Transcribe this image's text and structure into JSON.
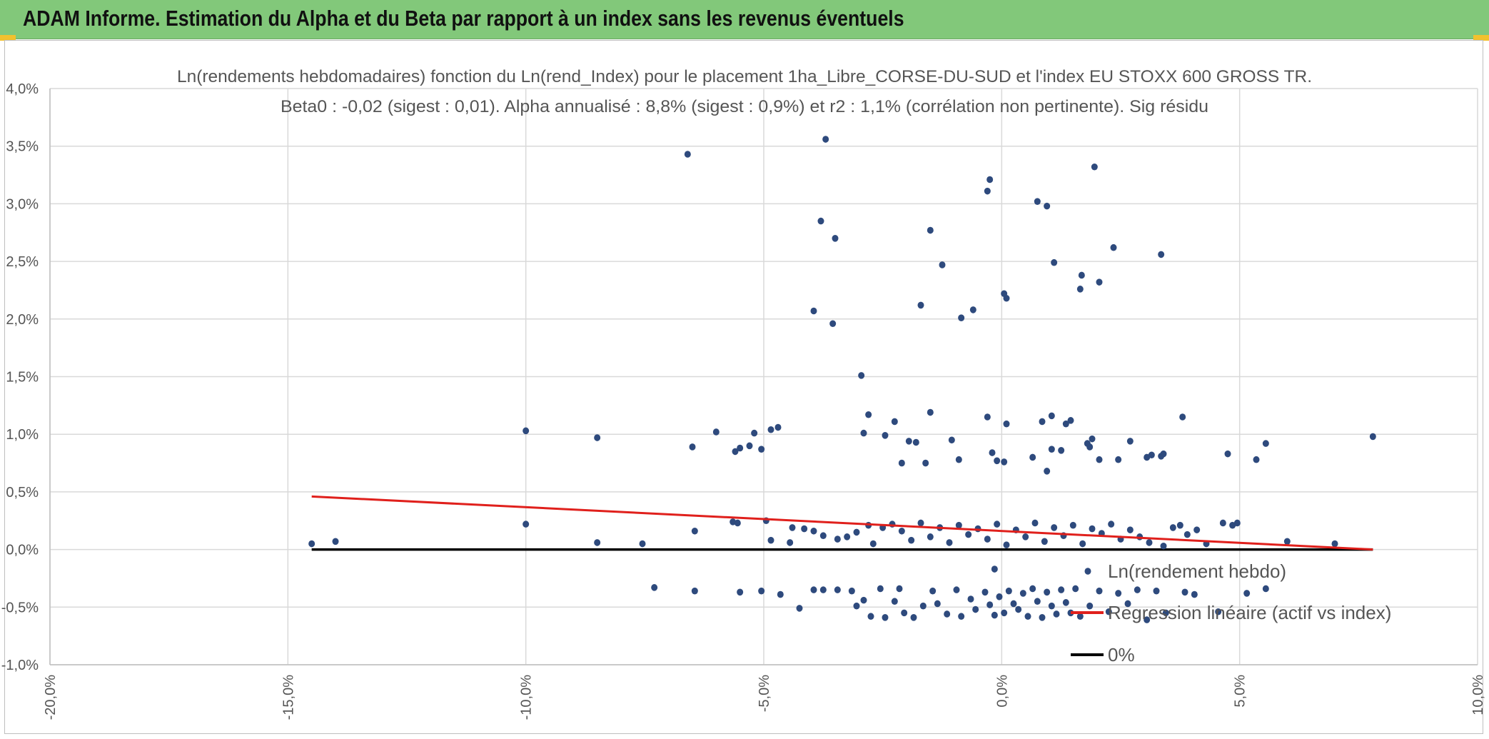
{
  "banner": {
    "title": "ADAM Informe. Estimation du Alpha et du Beta par rapport à un index sans les revenus éventuels"
  },
  "colors": {
    "banner_bg": "#82c87a",
    "points": "#2e4a7d",
    "regression": "#e0201c",
    "zero_line": "#000000",
    "grid": "#d9d9d9",
    "accent": "#f2c12e"
  },
  "chart_data": {
    "type": "scatter",
    "title_line1": "Ln(rendements hebdomadaires) fonction du Ln(rend_Index) pour le placement 1ha_Libre_CORSE-DU-SUD et l'index EU STOXX 600 GROSS TR.",
    "title_line2": "Beta0 : -0,02 (sigest : 0,01). Alpha annualisé : 8,8% (sigest : 0,9%) et r2 : 1,1% (corrélation non pertinente). Sig résidu",
    "xlim": [
      -0.2,
      0.1
    ],
    "ylim": [
      -0.01,
      0.04
    ],
    "x_ticks": [
      -0.2,
      -0.15,
      -0.1,
      -0.05,
      0.0,
      0.05,
      0.1
    ],
    "x_tick_labels": [
      "-20,0%",
      "-15,0%",
      "-10,0%",
      "-5,0%",
      "0,0%",
      "5,0%",
      "10,0%"
    ],
    "y_ticks": [
      -0.01,
      -0.005,
      0.0,
      0.005,
      0.01,
      0.015,
      0.02,
      0.025,
      0.03,
      0.035,
      0.04
    ],
    "y_tick_labels": [
      "-1,0%",
      "-0,5%",
      "0,0%",
      "0,5%",
      "1,0%",
      "1,5%",
      "2,0%",
      "2,5%",
      "3,0%",
      "3,5%",
      "4,0%"
    ],
    "grid": true,
    "legend_position": "bottom-right, inside plot",
    "series": [
      {
        "name": "Ln(rendement hebdo)",
        "kind": "points",
        "points": [
          [
            -0.066,
            0.0343
          ],
          [
            -0.037,
            0.0356
          ],
          [
            0.0195,
            0.0332
          ],
          [
            -0.0025,
            0.0321
          ],
          [
            -0.003,
            0.0311
          ],
          [
            0.0075,
            0.0302
          ],
          [
            0.0095,
            0.0298
          ],
          [
            -0.038,
            0.0285
          ],
          [
            -0.035,
            0.027
          ],
          [
            -0.015,
            0.0277
          ],
          [
            -0.0125,
            0.0247
          ],
          [
            0.011,
            0.0249
          ],
          [
            0.0235,
            0.0262
          ],
          [
            0.0335,
            0.0256
          ],
          [
            0.0165,
            0.0226
          ],
          [
            0.0168,
            0.0238
          ],
          [
            0.0205,
            0.0232
          ],
          [
            -0.0395,
            0.0207
          ],
          [
            -0.0355,
            0.0196
          ],
          [
            -0.017,
            0.0212
          ],
          [
            -0.006,
            0.0208
          ],
          [
            -0.0085,
            0.0201
          ],
          [
            0.0005,
            0.0222
          ],
          [
            0.001,
            0.0218
          ],
          [
            -0.0295,
            0.0151
          ],
          [
            -0.1,
            0.0103
          ],
          [
            -0.085,
            0.0097
          ],
          [
            -0.065,
            0.0089
          ],
          [
            -0.06,
            0.0102
          ],
          [
            -0.056,
            0.0085
          ],
          [
            -0.055,
            0.0088
          ],
          [
            -0.053,
            0.009
          ],
          [
            -0.052,
            0.0101
          ],
          [
            -0.0505,
            0.0087
          ],
          [
            -0.0485,
            0.0104
          ],
          [
            -0.047,
            0.0106
          ],
          [
            -0.028,
            0.0117
          ],
          [
            -0.029,
            0.0101
          ],
          [
            -0.0245,
            0.0099
          ],
          [
            -0.0225,
            0.0111
          ],
          [
            -0.0195,
            0.0094
          ],
          [
            -0.018,
            0.0093
          ],
          [
            -0.021,
            0.0075
          ],
          [
            -0.016,
            0.0075
          ],
          [
            -0.015,
            0.0119
          ],
          [
            -0.0105,
            0.0095
          ],
          [
            -0.009,
            0.0078
          ],
          [
            -0.003,
            0.0115
          ],
          [
            -0.002,
            0.0084
          ],
          [
            -0.001,
            0.0077
          ],
          [
            0.001,
            0.0109
          ],
          [
            0.0005,
            0.0076
          ],
          [
            0.0065,
            0.008
          ],
          [
            0.0085,
            0.0111
          ],
          [
            0.0095,
            0.0068
          ],
          [
            0.0105,
            0.0116
          ],
          [
            0.0105,
            0.0087
          ],
          [
            0.0135,
            0.0109
          ],
          [
            0.0145,
            0.0112
          ],
          [
            0.0125,
            0.0086
          ],
          [
            0.018,
            0.0092
          ],
          [
            0.0185,
            0.0089
          ],
          [
            0.019,
            0.0096
          ],
          [
            0.0205,
            0.0078
          ],
          [
            0.0245,
            0.0078
          ],
          [
            0.027,
            0.0094
          ],
          [
            0.0305,
            0.008
          ],
          [
            0.0315,
            0.0082
          ],
          [
            0.0335,
            0.0081
          ],
          [
            0.034,
            0.0083
          ],
          [
            0.038,
            0.0115
          ],
          [
            0.0475,
            0.0083
          ],
          [
            0.0535,
            0.0078
          ],
          [
            0.0555,
            0.0092
          ],
          [
            0.078,
            0.0098
          ],
          [
            -0.145,
            0.0005
          ],
          [
            -0.14,
            0.0007
          ],
          [
            -0.1,
            0.0022
          ],
          [
            -0.085,
            0.0006
          ],
          [
            -0.0755,
            0.0005
          ],
          [
            -0.0645,
            0.0016
          ],
          [
            -0.0565,
            0.0024
          ],
          [
            -0.0555,
            0.0023
          ],
          [
            -0.0495,
            0.0025
          ],
          [
            -0.0445,
            0.0006
          ],
          [
            -0.0485,
            0.0008
          ],
          [
            -0.044,
            0.0019
          ],
          [
            -0.0415,
            0.0018
          ],
          [
            -0.0395,
            0.0016
          ],
          [
            -0.0375,
            0.0012
          ],
          [
            -0.0345,
            0.0009
          ],
          [
            -0.0325,
            0.0011
          ],
          [
            -0.0305,
            0.0015
          ],
          [
            -0.028,
            0.0021
          ],
          [
            -0.027,
            0.0005
          ],
          [
            -0.025,
            0.0019
          ],
          [
            -0.023,
            0.0022
          ],
          [
            -0.021,
            0.0016
          ],
          [
            -0.019,
            0.0008
          ],
          [
            -0.017,
            0.0023
          ],
          [
            -0.015,
            0.0011
          ],
          [
            -0.013,
            0.0019
          ],
          [
            -0.011,
            0.0006
          ],
          [
            -0.009,
            0.0021
          ],
          [
            -0.007,
            0.0013
          ],
          [
            -0.005,
            0.0018
          ],
          [
            -0.003,
            0.0009
          ],
          [
            -0.001,
            0.0022
          ],
          [
            0.001,
            0.0004
          ],
          [
            0.003,
            0.0017
          ],
          [
            0.005,
            0.0011
          ],
          [
            0.007,
            0.0023
          ],
          [
            0.009,
            0.0007
          ],
          [
            0.011,
            0.0019
          ],
          [
            0.013,
            0.0012
          ],
          [
            0.015,
            0.0021
          ],
          [
            0.017,
            0.0005
          ],
          [
            0.019,
            0.0018
          ],
          [
            0.021,
            0.0014
          ],
          [
            0.023,
            0.0022
          ],
          [
            0.025,
            0.0009
          ],
          [
            0.027,
            0.0017
          ],
          [
            0.029,
            0.0011
          ],
          [
            0.031,
            0.0006
          ],
          [
            0.034,
            0.0003
          ],
          [
            0.036,
            0.0019
          ],
          [
            0.0375,
            0.0021
          ],
          [
            0.039,
            0.0013
          ],
          [
            0.041,
            0.0017
          ],
          [
            0.043,
            0.0005
          ],
          [
            0.0465,
            0.0023
          ],
          [
            0.0485,
            0.0021
          ],
          [
            0.0495,
            0.0023
          ],
          [
            0.06,
            0.0007
          ],
          [
            0.07,
            0.0005
          ],
          [
            -0.073,
            -0.0033
          ],
          [
            -0.0645,
            -0.0036
          ],
          [
            -0.055,
            -0.0037
          ],
          [
            -0.0505,
            -0.0036
          ],
          [
            -0.0465,
            -0.0039
          ],
          [
            -0.0425,
            -0.0051
          ],
          [
            -0.0395,
            -0.0035
          ],
          [
            -0.0375,
            -0.0035
          ],
          [
            -0.0345,
            -0.0035
          ],
          [
            -0.0315,
            -0.0036
          ],
          [
            -0.0305,
            -0.0049
          ],
          [
            -0.029,
            -0.0044
          ],
          [
            -0.0275,
            -0.0058
          ],
          [
            -0.0255,
            -0.0034
          ],
          [
            -0.0245,
            -0.0059
          ],
          [
            -0.0225,
            -0.0045
          ],
          [
            -0.0215,
            -0.0034
          ],
          [
            -0.0205,
            -0.0055
          ],
          [
            -0.0185,
            -0.0059
          ],
          [
            -0.0165,
            -0.0049
          ],
          [
            -0.0145,
            -0.0036
          ],
          [
            -0.0135,
            -0.0047
          ],
          [
            -0.0115,
            -0.0056
          ],
          [
            -0.0095,
            -0.0035
          ],
          [
            -0.0085,
            -0.0058
          ],
          [
            -0.0065,
            -0.0043
          ],
          [
            -0.0055,
            -0.0052
          ],
          [
            -0.0035,
            -0.0037
          ],
          [
            -0.0025,
            -0.0048
          ],
          [
            -0.0015,
            -0.0057
          ],
          [
            -0.0005,
            -0.0041
          ],
          [
            0.0005,
            -0.0055
          ],
          [
            0.0015,
            -0.0036
          ],
          [
            0.0025,
            -0.0047
          ],
          [
            0.0035,
            -0.0052
          ],
          [
            0.0045,
            -0.0038
          ],
          [
            0.0055,
            -0.0058
          ],
          [
            0.0065,
            -0.0034
          ],
          [
            0.0075,
            -0.0045
          ],
          [
            0.0085,
            -0.0059
          ],
          [
            0.0095,
            -0.0037
          ],
          [
            0.0105,
            -0.0049
          ],
          [
            0.0115,
            -0.0056
          ],
          [
            0.0125,
            -0.0035
          ],
          [
            0.0135,
            -0.0046
          ],
          [
            0.0145,
            -0.0055
          ],
          [
            0.0155,
            -0.0034
          ],
          [
            0.0165,
            -0.0058
          ],
          [
            0.0185,
            -0.0049
          ],
          [
            0.0205,
            -0.0036
          ],
          [
            0.0225,
            -0.0054
          ],
          [
            0.0245,
            -0.0038
          ],
          [
            0.0265,
            -0.0047
          ],
          [
            0.0285,
            -0.0035
          ],
          [
            0.0305,
            -0.0061
          ],
          [
            0.0325,
            -0.0036
          ],
          [
            0.0345,
            -0.0055
          ],
          [
            0.0385,
            -0.0037
          ],
          [
            0.0405,
            -0.0039
          ],
          [
            0.0455,
            -0.0054
          ],
          [
            0.0515,
            -0.0038
          ],
          [
            0.0555,
            -0.0034
          ],
          [
            -0.0015,
            -0.0017
          ]
        ]
      },
      {
        "name": "Regression linéaire (actif vs index)",
        "kind": "line",
        "x": [
          -0.145,
          0.078
        ],
        "y": [
          0.0046,
          0.0
        ]
      },
      {
        "name": "0%",
        "kind": "line",
        "x": [
          -0.145,
          0.078
        ],
        "y": [
          0.0,
          0.0
        ]
      }
    ]
  }
}
